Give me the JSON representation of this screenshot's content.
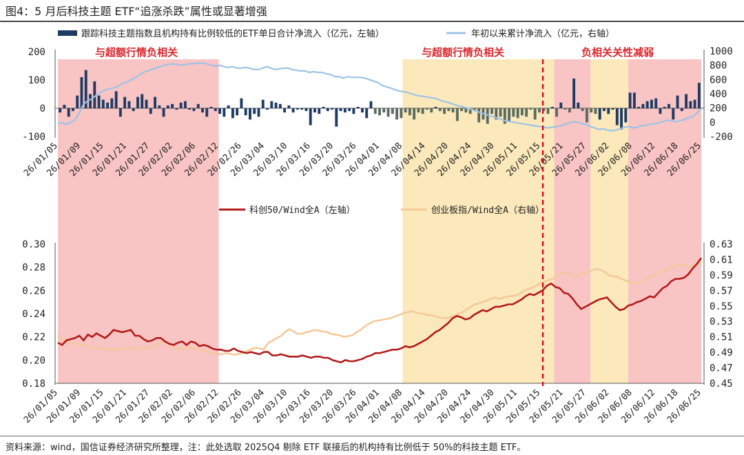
{
  "figure": {
    "title": "图4：5 月后科技主题 ETF“追涨杀跌”属性或显著增强",
    "source_note": "资料来源：wind，国信证券经济研究所整理，注：此处选取 2025Q4 剔除 ETF 联接后的机构持有比例低于 50%的科技主题 ETF。"
  },
  "colors": {
    "pink_shade": "#f9c4c4",
    "yellow_shade": "#fbe9bb",
    "bar_blue": "#1f3b64",
    "bar_gray_green": "#5b6b5f",
    "line_light_blue": "#9dc3e6",
    "line_dark_red": "#b31b1b",
    "line_light_orange": "#f5c99a",
    "annotation_red": "#d9272d",
    "divider_red": "#e0001b"
  },
  "chart_data": [
    {
      "type": "bar",
      "panel": "top",
      "x_tick_labels": [
        "26/01/05",
        "26/01/09",
        "26/01/15",
        "26/01/21",
        "26/01/27",
        "26/02/02",
        "26/02/06",
        "26/02/12",
        "26/02/26",
        "26/03/04",
        "26/03/10",
        "26/03/16",
        "26/03/20",
        "26/03/26",
        "26/04/01",
        "26/04/08",
        "26/04/14",
        "26/04/20",
        "26/04/24",
        "26/04/30",
        "26/05/11",
        "26/05/15",
        "26/05/21",
        "26/05/27",
        "26/06/02",
        "26/06/08",
        "26/06/12",
        "26/06/18",
        "26/06/25"
      ],
      "series": [
        {
          "name": "跟踪科技主题指数且机构持有比例较低的ETF单日合计净流入（亿元，左轴）",
          "axis": "left",
          "values": [
            -15,
            12,
            -30,
            -10,
            45,
            110,
            135,
            50,
            95,
            45,
            30,
            20,
            35,
            60,
            -30,
            40,
            25,
            -10,
            40,
            50,
            30,
            -20,
            40,
            10,
            -30,
            10,
            15,
            -5,
            20,
            25,
            -5,
            -10,
            15,
            -15,
            -30,
            5,
            -10,
            -20,
            -30,
            10,
            -35,
            -25,
            35,
            -25,
            -40,
            -20,
            -30,
            30,
            -5,
            25,
            20,
            15,
            -15,
            10,
            -15,
            -5,
            -5,
            -10,
            -60,
            -15,
            -20,
            5,
            -10,
            -5,
            -65,
            -10,
            -15,
            -10,
            -20,
            5,
            -15,
            -35,
            25,
            -20,
            -25,
            -15,
            -30,
            -20,
            -40,
            -35,
            -15,
            -25,
            -40,
            -15,
            -20,
            -5,
            -15,
            5,
            -10,
            -20,
            -10,
            -15,
            -45,
            -10,
            -15,
            -20,
            -10,
            -50,
            -40,
            -55,
            -20,
            -40,
            -30,
            -55,
            -45,
            -30,
            -35,
            -25,
            -30,
            -5,
            -40,
            -15,
            -10,
            -20,
            5,
            -30,
            20,
            -5,
            -15,
            105,
            20,
            -10,
            -50,
            -15,
            -20,
            -40,
            -10,
            -20,
            -5,
            -60,
            -75,
            -50,
            55,
            55,
            5,
            15,
            25,
            30,
            35,
            -20,
            5,
            15,
            -40,
            45,
            -10,
            50,
            25,
            30,
            90
          ],
          "split_color_from_index": 73
        },
        {
          "name": "年初以来累计净流入（亿元，右轴）",
          "axis": "right",
          "type": "line",
          "values": [
            -15,
            -5,
            -30,
            0,
            30,
            130,
            250,
            300,
            330,
            380,
            420,
            450,
            470,
            480,
            500,
            540,
            560,
            590,
            620,
            660,
            700,
            720,
            740,
            760,
            780,
            800,
            810,
            820,
            810,
            800,
            810,
            820,
            825,
            830,
            830,
            820,
            800,
            790,
            800,
            780,
            770,
            780,
            760,
            760,
            770,
            760,
            740,
            740,
            760,
            780,
            760,
            740,
            750,
            760,
            760,
            740,
            730,
            720,
            720,
            700,
            710,
            700,
            700,
            680,
            670,
            640,
            640,
            620,
            640,
            630,
            630,
            630,
            620,
            600,
            580,
            560,
            520,
            500,
            480,
            460,
            440,
            430,
            420,
            400,
            380,
            370,
            360,
            350,
            340,
            330,
            300,
            290,
            270,
            250,
            230,
            220,
            200,
            180,
            160,
            140,
            120,
            100,
            80,
            60,
            40,
            20,
            10,
            0,
            -10,
            -20,
            -30,
            -40,
            -50,
            -60,
            -70,
            -80,
            -70,
            -60,
            -50,
            -30,
            -10,
            10,
            0,
            -20,
            -30,
            -60,
            -80,
            -100,
            -90,
            -110,
            -120,
            -110,
            -90,
            -70,
            -60,
            -80,
            -70,
            -50,
            -40,
            -30,
            -20,
            -10,
            10,
            30,
            20,
            10,
            20,
            40,
            60,
            80,
            130,
            190
          ]
        }
      ],
      "left_axis": {
        "range": [
          -100,
          200
        ],
        "ticks": [
          "-100",
          "0",
          "100",
          "200"
        ]
      },
      "right_axis": {
        "range": [
          -200,
          1000
        ],
        "ticks": [
          "-200",
          "0",
          "200",
          "400",
          "600",
          "800",
          "1000"
        ]
      },
      "regions": [
        {
          "label": "与超额行情负相关",
          "from_tick": "26/01/05",
          "to_tick": "26/02/12",
          "shade": "pink"
        },
        {
          "label": "与超额行情负相关",
          "from_tick": "26/04/08",
          "to_tick": "26/05/15",
          "shade": "yellow"
        },
        {
          "label": "负相关关性减弱",
          "from_tick": "26/05/21",
          "to_tick": "26/06/25",
          "shade": "mixed"
        }
      ]
    },
    {
      "type": "line",
      "panel": "bottom",
      "x_tick_labels": [
        "26/01/05",
        "26/01/09",
        "26/01/15",
        "26/01/21",
        "26/01/27",
        "26/02/02",
        "26/02/06",
        "26/02/12",
        "26/02/26",
        "26/03/04",
        "26/03/10",
        "26/03/16",
        "26/03/20",
        "26/03/26",
        "26/04/01",
        "26/04/08",
        "26/04/14",
        "26/04/20",
        "26/04/24",
        "26/04/30",
        "26/05/11",
        "26/05/15",
        "26/05/21",
        "26/05/27",
        "26/06/02",
        "26/06/08",
        "26/06/12",
        "26/06/18",
        "26/06/25"
      ],
      "series": [
        {
          "name": "科创50/Wind全A（左轴）",
          "axis": "left",
          "values": [
            0.215,
            0.213,
            0.217,
            0.218,
            0.219,
            0.221,
            0.217,
            0.222,
            0.22,
            0.223,
            0.221,
            0.219,
            0.222,
            0.226,
            0.225,
            0.224,
            0.225,
            0.226,
            0.221,
            0.221,
            0.218,
            0.216,
            0.217,
            0.219,
            0.219,
            0.216,
            0.214,
            0.213,
            0.215,
            0.216,
            0.213,
            0.216,
            0.215,
            0.212,
            0.213,
            0.212,
            0.21,
            0.209,
            0.209,
            0.208,
            0.208,
            0.21,
            0.208,
            0.207,
            0.206,
            0.207,
            0.206,
            0.205,
            0.207,
            0.207,
            0.204,
            0.204,
            0.205,
            0.204,
            0.203,
            0.203,
            0.203,
            0.204,
            0.203,
            0.202,
            0.203,
            0.203,
            0.202,
            0.202,
            0.2,
            0.199,
            0.198,
            0.2,
            0.199,
            0.199,
            0.2,
            0.201,
            0.203,
            0.204,
            0.206,
            0.206,
            0.207,
            0.208,
            0.209,
            0.209,
            0.21,
            0.212,
            0.211,
            0.212,
            0.214,
            0.216,
            0.218,
            0.221,
            0.224,
            0.226,
            0.229,
            0.232,
            0.236,
            0.238,
            0.237,
            0.235,
            0.236,
            0.239,
            0.241,
            0.243,
            0.242,
            0.244,
            0.246,
            0.246,
            0.247,
            0.248,
            0.248,
            0.25,
            0.252,
            0.255,
            0.257,
            0.256,
            0.258,
            0.26,
            0.264,
            0.266,
            0.263,
            0.262,
            0.258,
            0.257,
            0.253,
            0.248,
            0.244,
            0.246,
            0.248,
            0.25,
            0.252,
            0.253,
            0.254,
            0.25,
            0.246,
            0.243,
            0.244,
            0.247,
            0.248,
            0.25,
            0.251,
            0.253,
            0.255,
            0.254,
            0.258,
            0.262,
            0.264,
            0.268,
            0.27,
            0.27,
            0.271,
            0.274,
            0.279,
            0.283,
            0.288
          ]
        },
        {
          "name": "创业板指/Wind全A（右轴）",
          "axis": "right",
          "values": [
            0.513,
            0.507,
            0.504,
            0.502,
            0.501,
            0.501,
            0.5,
            0.498,
            0.497,
            0.496,
            0.495,
            0.494,
            0.494,
            0.493,
            0.494,
            0.494,
            0.495,
            0.496,
            0.495,
            0.494,
            0.495,
            0.496,
            0.497,
            0.498,
            0.502,
            0.504,
            0.502,
            0.498,
            0.495,
            0.494,
            0.495,
            0.497,
            0.495,
            0.494,
            0.493,
            0.492,
            0.49,
            0.489,
            0.488,
            0.488,
            0.489,
            0.488,
            0.487,
            0.488,
            0.489,
            0.492,
            0.494,
            0.496,
            0.495,
            0.494,
            0.502,
            0.505,
            0.508,
            0.511,
            0.516,
            0.52,
            0.517,
            0.514,
            0.514,
            0.516,
            0.517,
            0.519,
            0.518,
            0.517,
            0.516,
            0.514,
            0.513,
            0.512,
            0.51,
            0.511,
            0.512,
            0.516,
            0.519,
            0.524,
            0.527,
            0.53,
            0.531,
            0.532,
            0.533,
            0.534,
            0.536,
            0.538,
            0.54,
            0.542,
            0.543,
            0.542,
            0.54,
            0.54,
            0.538,
            0.538,
            0.536,
            0.535,
            0.534,
            0.535,
            0.537,
            0.539,
            0.541,
            0.545,
            0.548,
            0.552,
            0.553,
            0.555,
            0.557,
            0.559,
            0.561,
            0.559,
            0.561,
            0.562,
            0.563,
            0.564,
            0.566,
            0.57,
            0.572,
            0.574,
            0.577,
            0.58,
            0.582,
            0.584,
            0.586,
            0.59,
            0.592,
            0.592,
            0.59,
            0.588,
            0.59,
            0.592,
            0.594,
            0.596,
            0.598,
            0.597,
            0.594,
            0.59,
            0.588,
            0.588,
            0.585,
            0.583,
            0.581,
            0.579,
            0.58,
            0.582,
            0.586,
            0.588,
            0.59,
            0.593,
            0.596,
            0.598,
            0.6,
            0.602,
            0.604,
            0.603,
            0.6,
            0.602,
            0.604,
            0.606
          ]
        }
      ],
      "left_axis": {
        "range": [
          0.18,
          0.3
        ],
        "ticks": [
          "0.18",
          "0.20",
          "0.22",
          "0.24",
          "0.26",
          "0.28",
          "0.30"
        ]
      },
      "right_axis": {
        "range": [
          0.45,
          0.63
        ],
        "ticks": [
          "0.45",
          "0.47",
          "0.49",
          "0.51",
          "0.53",
          "0.55",
          "0.57",
          "0.59",
          "0.61",
          "0.63"
        ]
      }
    }
  ]
}
